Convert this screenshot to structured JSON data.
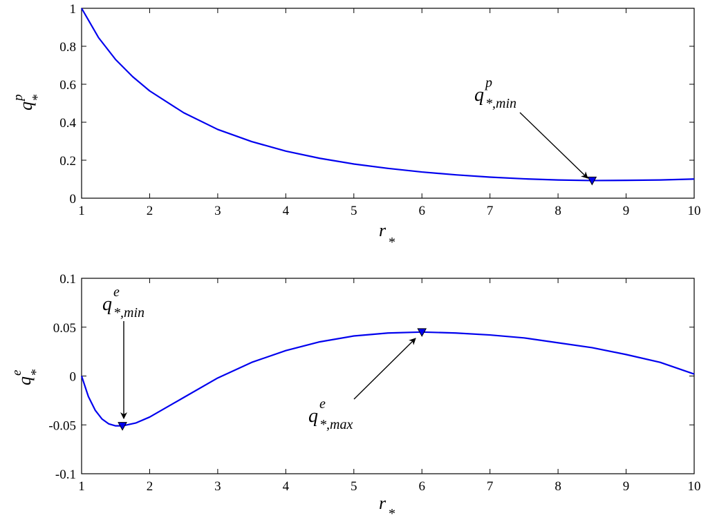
{
  "chart_data": [
    {
      "type": "line",
      "xlabel": {
        "base": "r",
        "sub": "*"
      },
      "ylabel": {
        "base": "q",
        "sub": "*",
        "sup": "p"
      },
      "xlim": [
        1,
        10
      ],
      "ylim": [
        0,
        1
      ],
      "xticks": [
        1,
        2,
        3,
        4,
        5,
        6,
        7,
        8,
        9,
        10
      ],
      "xtick_labels": [
        "1",
        "2",
        "3",
        "4",
        "5",
        "6",
        "7",
        "8",
        "9",
        "10"
      ],
      "yticks": [
        0,
        0.2,
        0.4,
        0.6,
        0.8,
        1
      ],
      "ytick_labels": [
        "0",
        "0.2",
        "0.4",
        "0.6",
        "0.8",
        "1"
      ],
      "grid": false,
      "series": [
        {
          "color": "#0000ee",
          "x": [
            1,
            1.25,
            1.5,
            1.75,
            2,
            2.5,
            3,
            3.5,
            4,
            4.5,
            5,
            5.5,
            6,
            6.5,
            7,
            7.5,
            8,
            8.5,
            9,
            9.5,
            10
          ],
          "y": [
            1,
            0.845,
            0.73,
            0.64,
            0.565,
            0.45,
            0.362,
            0.298,
            0.248,
            0.21,
            0.18,
            0.157,
            0.138,
            0.123,
            0.111,
            0.102,
            0.096,
            0.093,
            0.094,
            0.096,
            0.101
          ]
        }
      ],
      "markers": [
        {
          "x": 8.5,
          "y": 0.093,
          "label": {
            "base": "q",
            "sup": "p",
            "sub": "*,min"
          }
        }
      ]
    },
    {
      "type": "line",
      "xlabel": {
        "base": "r",
        "sub": "*"
      },
      "ylabel": {
        "base": "q",
        "sub": "*",
        "sup": "e"
      },
      "xlim": [
        1,
        10
      ],
      "ylim": [
        -0.1,
        0.1
      ],
      "xticks": [
        1,
        2,
        3,
        4,
        5,
        6,
        7,
        8,
        9,
        10
      ],
      "xtick_labels": [
        "1",
        "2",
        "3",
        "4",
        "5",
        "6",
        "7",
        "8",
        "9",
        "10"
      ],
      "yticks": [
        -0.1,
        -0.05,
        0,
        0.05,
        0.1
      ],
      "ytick_labels": [
        "-0.1",
        "-0.05",
        "0",
        "0.05",
        "0.1"
      ],
      "grid": false,
      "series": [
        {
          "color": "#0000ee",
          "x": [
            1,
            1.1,
            1.2,
            1.3,
            1.4,
            1.5,
            1.6,
            1.8,
            2,
            2.5,
            3,
            3.5,
            4,
            4.5,
            5,
            5.5,
            6,
            6.5,
            7,
            7.5,
            8,
            8.5,
            9,
            9.5,
            10
          ],
          "y": [
            0,
            -0.021,
            -0.035,
            -0.044,
            -0.049,
            -0.051,
            -0.051,
            -0.048,
            -0.042,
            -0.022,
            -0.002,
            0.014,
            0.026,
            0.035,
            0.041,
            0.044,
            0.045,
            0.044,
            0.042,
            0.039,
            0.034,
            0.029,
            0.022,
            0.014,
            0.002
          ]
        }
      ],
      "markers": [
        {
          "x": 1.6,
          "y": -0.051,
          "label": {
            "base": "q",
            "sup": "e",
            "sub": "*,min"
          }
        },
        {
          "x": 6.0,
          "y": 0.045,
          "label": {
            "base": "q",
            "sup": "e",
            "sub": "*,max"
          }
        }
      ]
    }
  ]
}
